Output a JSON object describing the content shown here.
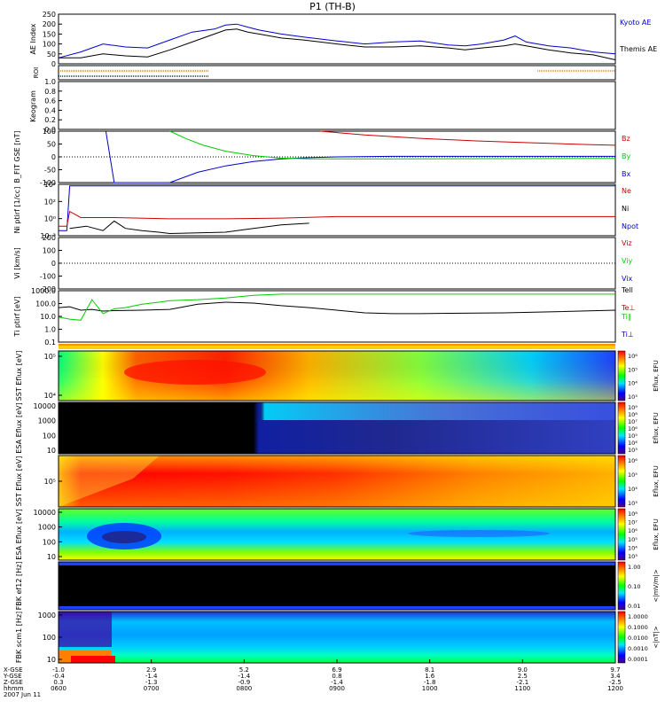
{
  "title": "P1  (TH-B)",
  "chart_data": [
    {
      "type": "line",
      "panel": "ae",
      "ylabel": "AE Index",
      "ylim": [
        0,
        250
      ],
      "yticks": [
        "0",
        "50",
        "100",
        "150",
        "200",
        "250"
      ],
      "legend": [
        "Kyoto AE",
        "Themis AE"
      ],
      "series": [
        {
          "name": "Kyoto AE",
          "color": "#0000cc",
          "x": [
            0,
            0.04,
            0.08,
            0.12,
            0.16,
            0.2,
            0.24,
            0.28,
            0.3,
            0.32,
            0.34,
            0.36,
            0.4,
            0.44,
            0.5,
            0.55,
            0.6,
            0.65,
            0.7,
            0.73,
            0.76,
            0.8,
            0.82,
            0.84,
            0.88,
            0.92,
            0.96,
            1.0
          ],
          "y": [
            30,
            60,
            100,
            85,
            80,
            120,
            160,
            175,
            195,
            200,
            185,
            170,
            150,
            135,
            115,
            100,
            110,
            115,
            95,
            90,
            100,
            120,
            140,
            110,
            90,
            80,
            60,
            50
          ]
        },
        {
          "name": "Themis AE",
          "color": "#000000",
          "x": [
            0,
            0.04,
            0.08,
            0.12,
            0.16,
            0.2,
            0.24,
            0.28,
            0.3,
            0.32,
            0.34,
            0.36,
            0.4,
            0.44,
            0.5,
            0.55,
            0.6,
            0.65,
            0.7,
            0.73,
            0.76,
            0.8,
            0.82,
            0.84,
            0.88,
            0.92,
            0.96,
            1.0
          ],
          "y": [
            30,
            30,
            50,
            40,
            35,
            70,
            110,
            150,
            170,
            175,
            160,
            150,
            130,
            120,
            100,
            85,
            85,
            90,
            80,
            70,
            80,
            90,
            100,
            90,
            70,
            55,
            45,
            20
          ]
        }
      ]
    },
    {
      "type": "line",
      "panel": "roi",
      "ylabel": "ROI",
      "series": [
        {
          "name": "",
          "color": "#cc6600",
          "x": [
            0,
            0.27
          ],
          "y": [
            1,
            1
          ]
        },
        {
          "name": "",
          "color": "#000000",
          "x": [
            0,
            0.27
          ],
          "y": [
            0,
            0
          ]
        },
        {
          "name": "",
          "color": "#cc6600",
          "x": [
            0.86,
            1.0
          ],
          "y": [
            1,
            1
          ]
        }
      ]
    },
    {
      "type": "line",
      "panel": "kgram",
      "ylabel": "Keogram",
      "ylim": [
        0,
        1.0
      ],
      "yticks": [
        "0.0",
        "0.2",
        "0.4",
        "0.6",
        "0.8",
        "1.0"
      ],
      "series": []
    },
    {
      "type": "line",
      "panel": "bfit",
      "ylabel": "B_FIT GSE [nT]",
      "ylim": [
        -100,
        100
      ],
      "yticks": [
        "-100",
        "-50",
        "0",
        "50",
        "100"
      ],
      "legend": [
        "Bz",
        "By",
        "Bx"
      ],
      "series": [
        {
          "name": "Bx",
          "color": "#0000cc",
          "x": [
            0.085,
            0.1,
            0.2,
            0.25,
            0.3,
            0.35,
            0.4,
            0.45,
            0.5,
            0.6,
            0.8,
            1.0
          ],
          "y": [
            100,
            -100,
            -100,
            -60,
            -35,
            -18,
            -8,
            -3,
            0,
            2,
            2,
            2
          ]
        },
        {
          "name": "By",
          "color": "#00cc00",
          "x": [
            0.2,
            0.23,
            0.26,
            0.3,
            0.35,
            0.4,
            0.45,
            0.5,
            0.6,
            0.8,
            1.0
          ],
          "y": [
            100,
            70,
            45,
            22,
            5,
            -5,
            -8,
            -8,
            -8,
            -7,
            -6
          ]
        },
        {
          "name": "Bz",
          "color": "#cc0000",
          "x": [
            0.47,
            0.55,
            0.65,
            0.75,
            0.85,
            0.95,
            1.0
          ],
          "y": [
            100,
            85,
            72,
            62,
            55,
            48,
            45
          ]
        }
      ]
    },
    {
      "type": "line",
      "panel": "ni",
      "ylabel": "Ni ptirf [1/cc]",
      "yscale": "log",
      "ylim": [
        0.001,
        10000
      ],
      "yticks": [
        "10⁻³",
        "10⁰",
        "10²",
        "10⁴"
      ],
      "legend": [
        "Ne",
        "Ni",
        "Npot"
      ],
      "series": [
        {
          "name": "Ne",
          "color": "#0000cc",
          "x": [
            0,
            0.015,
            0.02,
            1.0
          ],
          "y": [
            0.005,
            0.005,
            6000,
            6000
          ]
        },
        {
          "name": "Ni",
          "color": "#cc0000",
          "x": [
            0,
            0.015,
            0.02,
            0.04,
            0.1,
            0.2,
            0.3,
            0.4,
            0.5,
            0.6,
            0.8,
            1.0
          ],
          "y": [
            0.02,
            0.02,
            2,
            0.3,
            0.3,
            0.2,
            0.2,
            0.25,
            0.4,
            0.4,
            0.4,
            0.4
          ]
        },
        {
          "name": "Npot",
          "color": "#000000",
          "x": [
            0.02,
            0.05,
            0.08,
            0.1,
            0.12,
            0.15,
            0.18,
            0.2,
            0.3,
            0.32,
            0.35,
            0.4,
            0.45
          ],
          "y": [
            0.01,
            0.02,
            0.005,
            0.1,
            0.01,
            0.005,
            0.003,
            0.002,
            0.003,
            0.005,
            0.01,
            0.03,
            0.05
          ]
        }
      ]
    },
    {
      "type": "line",
      "panel": "vi",
      "ylabel": "Vi [km/s]",
      "ylim": [
        -250,
        250
      ],
      "yticks": [
        "-200",
        "-100",
        "0",
        "100",
        "200"
      ],
      "legend": [
        "Viz",
        "Viy",
        "Vix"
      ],
      "series": []
    },
    {
      "type": "line",
      "panel": "ti",
      "ylabel": "Ti ptirf [eV]",
      "yscale": "log",
      "ylim": [
        0.1,
        3000
      ],
      "yticks": [
        "0.1",
        "1.0",
        "10.0",
        "100.0",
        "1000.0"
      ],
      "legend": [
        "Tell",
        "Te⊥",
        "Ti∥",
        "Ti⊥"
      ],
      "series": [
        {
          "name": "Tell",
          "color": "#000000",
          "x": [
            0,
            0.02,
            0.04,
            0.06,
            0.08,
            0.1,
            0.15,
            0.2,
            0.25,
            0.3,
            0.35,
            0.4,
            0.45,
            0.5,
            0.55,
            0.6,
            0.65,
            0.7,
            0.8,
            0.9,
            1.0
          ],
          "y": [
            100,
            120,
            60,
            70,
            50,
            55,
            60,
            70,
            200,
            300,
            250,
            150,
            100,
            60,
            35,
            30,
            30,
            32,
            35,
            45,
            60
          ]
        },
        {
          "name": "Ti∥",
          "color": "#00cc00",
          "x": [
            0,
            0.02,
            0.04,
            0.06,
            0.08,
            0.1,
            0.12,
            0.15,
            0.18,
            0.2,
            0.25,
            0.3,
            0.35,
            0.4,
            0.5,
            0.6,
            0.7,
            0.8,
            0.9,
            1.0
          ],
          "y": [
            15,
            10,
            8,
            500,
            30,
            80,
            100,
            200,
            300,
            400,
            500,
            700,
            1200,
            1500,
            1500,
            1500,
            1500,
            1500,
            1500,
            1500
          ]
        }
      ]
    },
    {
      "type": "heatmap",
      "panel": "sst_e",
      "ylabel": "SST Eflux [eV]",
      "yticks": [
        "10⁴",
        "10⁵"
      ],
      "colorbar_label": "Eflux, EFU",
      "colorbar_ticks": [
        "10⁶",
        "10⁵",
        "10⁴",
        "10³"
      ]
    },
    {
      "type": "heatmap",
      "panel": "esa_e",
      "ylabel": "ESA Eflux [eV]",
      "yticks": [
        "10",
        "100",
        "1000",
        "10000"
      ],
      "colorbar_label": "Eflux, EFU",
      "colorbar_ticks": [
        "10⁹",
        "10⁸",
        "10⁷",
        "10⁶",
        "10⁵",
        "10⁴",
        "10³"
      ]
    },
    {
      "type": "heatmap",
      "panel": "sst_i",
      "ylabel": "SST Eflux [eV]",
      "yticks": [
        "10⁵"
      ],
      "colorbar_label": "Eflux, EFU",
      "colorbar_ticks": [
        "10⁶",
        "10⁵",
        "10⁴",
        "10³"
      ]
    },
    {
      "type": "heatmap",
      "panel": "esa_i",
      "ylabel": "ESA Eflux [eV]",
      "yticks": [
        "10",
        "100",
        "1000",
        "10000"
      ],
      "colorbar_label": "Eflux, EFU",
      "colorbar_ticks": [
        "10⁸",
        "10⁷",
        "10⁶",
        "10⁵",
        "10⁴",
        "10³"
      ]
    },
    {
      "type": "heatmap",
      "panel": "fbk_scm",
      "ylabel": "FBK ef12 [Hz]",
      "yticks": [
        "10",
        "100",
        "1000"
      ],
      "colorbar_label": "<|mV/m|>",
      "colorbar_ticks": [
        "1.00",
        "0.10",
        "0.01"
      ]
    },
    {
      "type": "heatmap",
      "panel": "fbk_efi",
      "ylabel": "FBK scm1 [Hz]",
      "yticks": [
        "10",
        "100",
        "1000"
      ],
      "colorbar_label": "<|nT|>",
      "colorbar_ticks": [
        "1.0000",
        "0.1000",
        "0.0100",
        "0.0010",
        "0.0001"
      ]
    }
  ],
  "xaxis": {
    "row_labels": [
      "X-GSE",
      "Y-GSE",
      "Z-GSE",
      "hhmm",
      "2007 Jun 11"
    ],
    "ticks": [
      {
        "x": "-1.0",
        "y": "-0.4",
        "z": "0.3",
        "t": "0600"
      },
      {
        "x": "2.9",
        "y": "-1.4",
        "z": "-1.3",
        "t": "0700"
      },
      {
        "x": "5.2",
        "y": "-1.4",
        "z": "-0.9",
        "t": "0800"
      },
      {
        "x": "6.9",
        "y": "0.8",
        "z": "-1.4",
        "t": "0900"
      },
      {
        "x": "8.1",
        "y": "1.6",
        "z": "-1.8",
        "t": "1000"
      },
      {
        "x": "9.0",
        "y": "2.5",
        "z": "-2.1",
        "t": "1100"
      },
      {
        "x": "9.7",
        "y": "3.4",
        "z": "-2.5",
        "t": "1200"
      }
    ]
  },
  "colors": {
    "blue": "#0000cc",
    "green": "#00cc00",
    "red": "#cc0000",
    "black": "#000000"
  }
}
